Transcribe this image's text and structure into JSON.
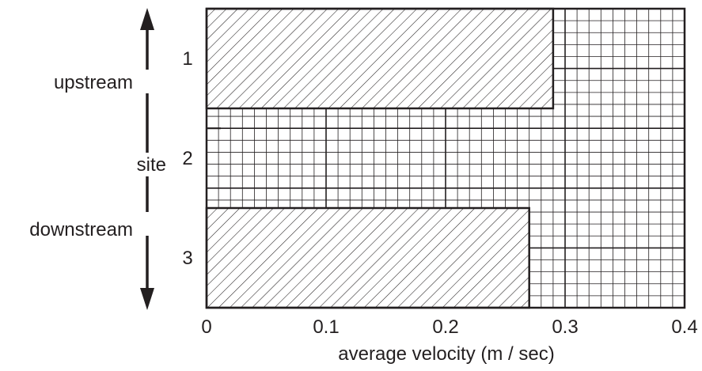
{
  "chart_data": {
    "type": "bar",
    "orientation": "horizontal",
    "categories": [
      "1",
      "2",
      "3"
    ],
    "values": [
      0.29,
      null,
      0.27
    ],
    "xlabel": "average velocity (m / sec)",
    "ylabel": "site",
    "xlim": [
      0,
      0.4
    ],
    "xticks": [
      "0",
      "0.1",
      "0.2",
      "0.3",
      "0.4"
    ],
    "grid": true,
    "bar_fill": "diagonal hatch",
    "upstream_label": "upstream",
    "downstream_label": "downstream",
    "colors": {
      "ink": "#231f20",
      "background": "#ffffff"
    }
  }
}
